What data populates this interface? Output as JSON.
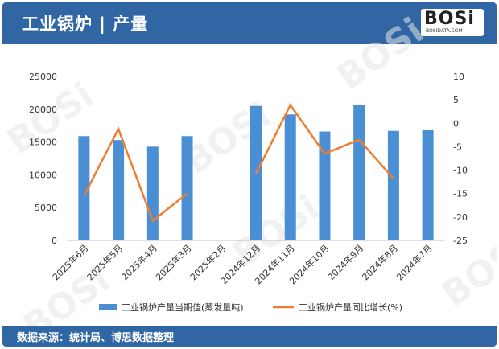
{
  "header": {
    "title": "工业锅炉 | 产量"
  },
  "logo": {
    "main": "BOSi",
    "sub": "BOSIDATA.COM"
  },
  "footer": {
    "source": "数据来源：统计局、博思数据整理"
  },
  "colors": {
    "bar": "#4a8fd4",
    "line": "#ed7d31",
    "header": "#2f66a3"
  },
  "chart_data": {
    "type": "bar",
    "categories": [
      "2025年6月",
      "2025年5月",
      "2025年4月",
      "2025年3月",
      "2025年2月",
      "2024年12月",
      "2024年11月",
      "2024年10月",
      "2024年9月",
      "2024年8月",
      "2024年7月"
    ],
    "series": [
      {
        "name": "工业锅炉产量当期值(蒸发量吨)",
        "type": "bar",
        "axis": "left",
        "values": [
          15900,
          15300,
          14300,
          15900,
          null,
          20500,
          19200,
          16600,
          20700,
          16700,
          16800
        ]
      },
      {
        "name": "工业锅炉产量同比增长(%)",
        "type": "line",
        "axis": "right",
        "values": [
          -15.5,
          -1.2,
          -20.8,
          -15.0,
          null,
          -10.8,
          3.9,
          -6.5,
          -3.5,
          -11.8,
          null
        ]
      }
    ],
    "ylim_left": [
      0,
      25000
    ],
    "yticks_left": [
      "25000",
      "20000",
      "15000",
      "10000",
      "5000",
      "0"
    ],
    "ylim_right": [
      -25,
      10
    ],
    "yticks_right": [
      "10",
      "5",
      "0",
      "-5",
      "-10",
      "-15",
      "-20",
      "-25"
    ],
    "legend_position": "bottom"
  }
}
